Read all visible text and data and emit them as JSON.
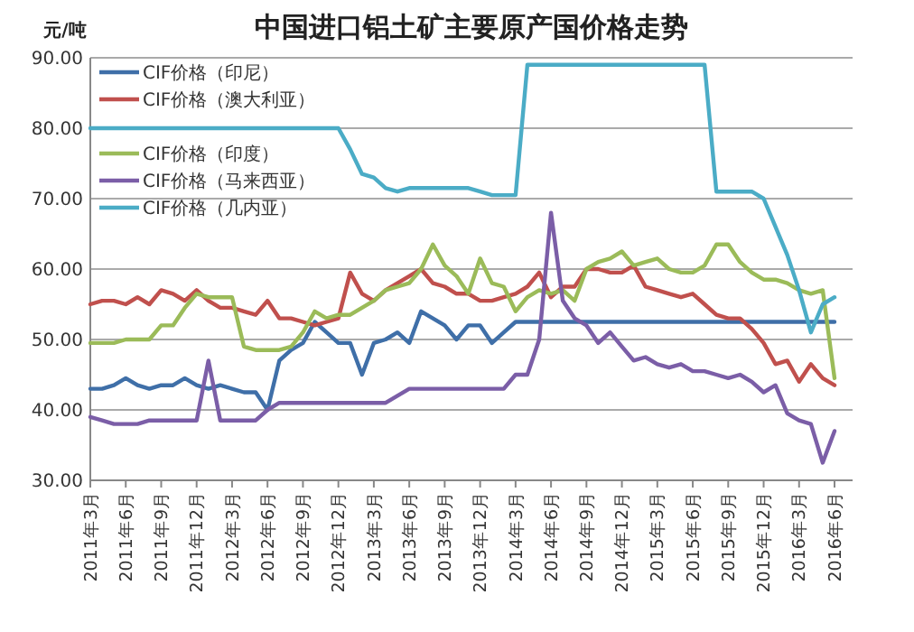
{
  "chart_data": {
    "type": "line",
    "title": "中国进口铝土矿主要原产国价格走势",
    "ylabel": "元/吨",
    "categories": [
      "2011年3月",
      null,
      null,
      "2011年6月",
      null,
      null,
      "2011年9月",
      null,
      null,
      "2011年12月",
      null,
      null,
      "2012年3月",
      null,
      null,
      "2012年6月",
      null,
      null,
      "2012年9月",
      null,
      null,
      "2012年12月",
      null,
      null,
      "2013年3月",
      null,
      null,
      "2013年6月",
      null,
      null,
      "2013年9月",
      null,
      null,
      "2013年12月",
      null,
      null,
      "2014年3月",
      null,
      null,
      "2014年6月",
      null,
      null,
      "2014年9月",
      null,
      null,
      "2014年12月",
      null,
      null,
      "2015年3月",
      null,
      null,
      "2015年6月",
      null,
      null,
      "2015年9月",
      null,
      null,
      "2015年12月",
      null,
      null,
      "2016年3月",
      null,
      null,
      "2016年6月"
    ],
    "ylim": [
      30,
      90
    ],
    "yticks": [
      {
        "value": 30,
        "label": "30.00"
      },
      {
        "value": 40,
        "label": "40.00"
      },
      {
        "value": 50,
        "label": "50.00"
      },
      {
        "value": 60,
        "label": "60.00"
      },
      {
        "value": 70,
        "label": "70.00"
      },
      {
        "value": 80,
        "label": "80.00"
      },
      {
        "value": 90,
        "label": "90.00"
      }
    ],
    "grid": "y",
    "legend": "top left",
    "marker": "none",
    "line_style": "solid",
    "series": [
      {
        "name": "CIF价格（印尼）",
        "color": "#3f6fa8",
        "values": [
          43,
          43,
          43.5,
          44.5,
          43.5,
          43,
          43.5,
          43.5,
          44.5,
          43.5,
          43,
          43.5,
          43,
          42.5,
          42.5,
          40,
          47,
          48.5,
          49.5,
          52.5,
          51,
          49.5,
          49.5,
          45,
          49.5,
          50,
          51,
          49.5,
          54,
          53,
          52,
          50,
          52,
          52,
          49.5,
          51,
          52.5,
          52.5,
          52.5,
          52.5,
          52.5,
          52.5,
          52.5,
          52.5,
          52.5,
          52.5,
          52.5,
          52.5,
          52.5,
          52.5,
          52.5,
          52.5,
          52.5,
          52.5,
          52.5,
          52.5,
          52.5,
          52.5,
          52.5,
          52.5,
          52.5,
          52.5,
          52.5,
          52.5
        ]
      },
      {
        "name": "CIF价格（澳大利亚）",
        "color": "#c0504d",
        "values": [
          55,
          55.5,
          55.5,
          55,
          56,
          55,
          57,
          56.5,
          55.5,
          57,
          55.5,
          54.5,
          54.5,
          54,
          53.5,
          55.5,
          53,
          53,
          52.5,
          52,
          52.5,
          53,
          59.5,
          56.5,
          55.5,
          57,
          58,
          59,
          60,
          58,
          57.5,
          56.5,
          56.5,
          55.5,
          55.5,
          56,
          56.5,
          57.5,
          59.5,
          56,
          57.5,
          57.5,
          60,
          60,
          59.5,
          59.5,
          60.5,
          57.5,
          57,
          56.5,
          56,
          56.5,
          55,
          53.5,
          53,
          53,
          51.5,
          49.5,
          46.5,
          47,
          44,
          46.5,
          44.5,
          43.5
        ]
      },
      {
        "name": "CIF价格（印度）",
        "color": "#9bbb59",
        "values": [
          49.5,
          49.5,
          49.5,
          50,
          50,
          50,
          52,
          52,
          54.5,
          56.5,
          56,
          56,
          56,
          49,
          48.5,
          48.5,
          48.5,
          49,
          51,
          54,
          53,
          53.5,
          53.5,
          54.5,
          55.5,
          57,
          57.5,
          58,
          60,
          63.5,
          60.5,
          59,
          56.5,
          61.5,
          58,
          57.5,
          54,
          56,
          57,
          56.5,
          57,
          55.5,
          60,
          61,
          61.5,
          62.5,
          60.5,
          61,
          61.5,
          60,
          59.5,
          59.5,
          60.5,
          63.5,
          63.5,
          61,
          59.5,
          58.5,
          58.5,
          58,
          57,
          56.5,
          57,
          44.5
        ]
      },
      {
        "name": "CIF价格（马来西亚）",
        "color": "#7b5ea7",
        "values": [
          39,
          38.5,
          38,
          38,
          38,
          38.5,
          38.5,
          38.5,
          38.5,
          38.5,
          47,
          38.5,
          38.5,
          38.5,
          38.5,
          40,
          41,
          41,
          41,
          41,
          41,
          41,
          41,
          41,
          41,
          41,
          42,
          43,
          43,
          43,
          43,
          43,
          43,
          43,
          43,
          43,
          45,
          45,
          50,
          68,
          55.5,
          53,
          52,
          49.5,
          51,
          49,
          47,
          47.5,
          46.5,
          46,
          46.5,
          45.5,
          45.5,
          45,
          44.5,
          45,
          44,
          42.5,
          43.5,
          39.5,
          38.5,
          38,
          32.5,
          37
        ]
      },
      {
        "name": "CIF价格（几内亚）",
        "color": "#4bacc6",
        "values": [
          80,
          80,
          80,
          80,
          80,
          80,
          80,
          80,
          80,
          80,
          80,
          80,
          80,
          80,
          80,
          80,
          80,
          80,
          80,
          80,
          80,
          80,
          77,
          73.5,
          73,
          71.5,
          71,
          71.5,
          71.5,
          71.5,
          71.5,
          71.5,
          71.5,
          71,
          70.5,
          70.5,
          70.5,
          89,
          89,
          89,
          89,
          89,
          89,
          89,
          89,
          89,
          89,
          89,
          89,
          89,
          89,
          89,
          89,
          71,
          71,
          71,
          71,
          70,
          66,
          62,
          57,
          51,
          55,
          56
        ]
      }
    ]
  }
}
